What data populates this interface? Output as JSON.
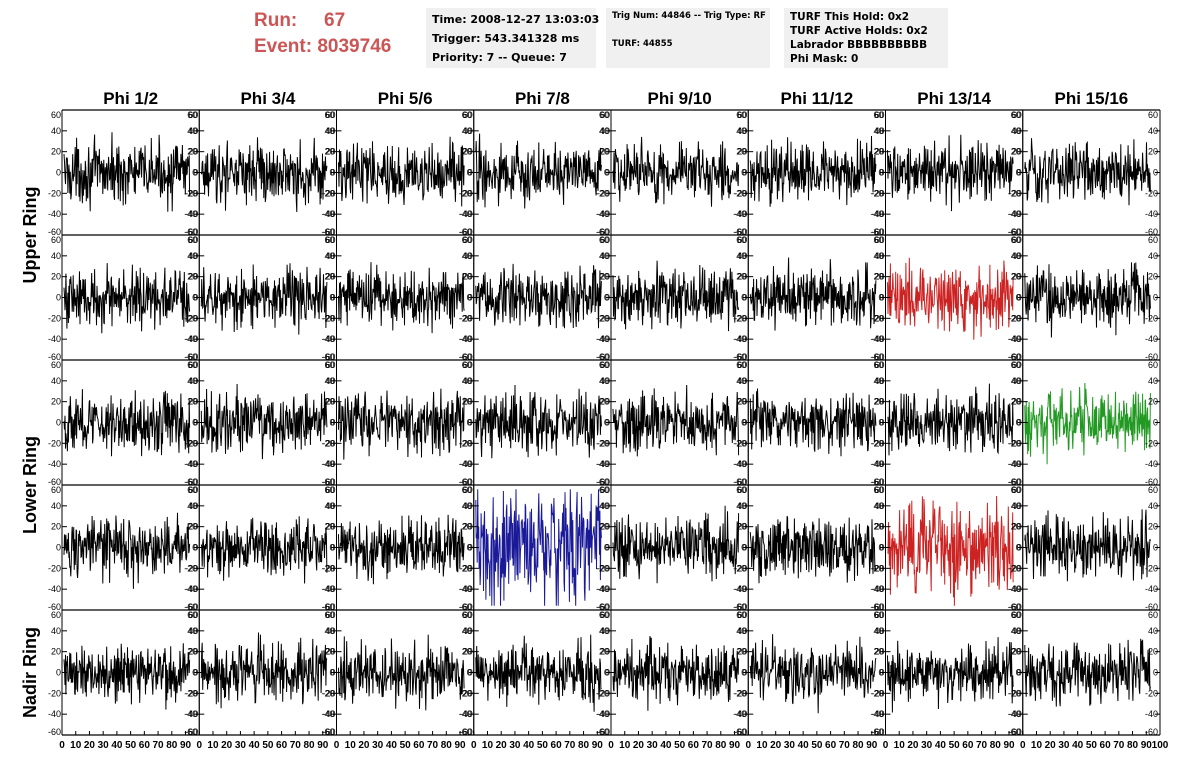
{
  "header": {
    "run_label": "Run:",
    "run_value": "67",
    "event_label": "Event:",
    "event_value": "8039746",
    "info_box1": [
      "Time: 2008-12-27 13:03:03",
      "Trigger: 543.341328 ms",
      "Priority: 7 -- Queue: 7"
    ],
    "info_box2": [
      "Trig Num: 44846 -- Trig Type: RF",
      "TURF: 44855"
    ],
    "info_box3": [
      "TURF This Hold: 0x2",
      "TURF Active Holds: 0x2",
      "Labrador BBBBBBBBBB",
      "Phi Mask: 0"
    ]
  },
  "chart_data": {
    "type": "line",
    "layout": "grid of 5 rows x 8 columns of waveform panels",
    "columns": [
      "Phi 1/2",
      "Phi 3/4",
      "Phi 5/6",
      "Phi 7/8",
      "Phi 9/10",
      "Phi 11/12",
      "Phi 13/14",
      "Phi 15/16"
    ],
    "row_groups": [
      {
        "label": "Upper Ring",
        "rows": [
          0,
          1
        ]
      },
      {
        "label": "Lower Ring",
        "rows": [
          2,
          3
        ]
      },
      {
        "label": "Nadir Ring",
        "rows": [
          4
        ]
      }
    ],
    "ylim": [
      -60,
      60
    ],
    "y_ticks": [
      -60,
      -40,
      -20,
      0,
      20,
      40,
      60
    ],
    "xlim": [
      0,
      100
    ],
    "x_ticks": [
      0,
      10,
      20,
      30,
      40,
      50,
      60,
      70,
      80,
      90,
      100
    ],
    "x_tick_labels_printed": [
      "0",
      "10",
      "20",
      "30",
      "40",
      "50",
      "60",
      "70",
      "80",
      "90",
      "100"
    ],
    "samples_per_trace": 260,
    "default_color": "#000000",
    "highlighted_traces": [
      {
        "row": 1,
        "col": 6,
        "color": "#cc2222",
        "amplitude": 22
      },
      {
        "row": 2,
        "col": 7,
        "color": "#229922",
        "amplitude": 22
      },
      {
        "row": 3,
        "col": 3,
        "color": "#1a1a99",
        "amplitude": 40
      },
      {
        "row": 3,
        "col": 6,
        "color": "#cc2222",
        "amplitude": 30
      }
    ],
    "typical_amplitude": 20
  }
}
